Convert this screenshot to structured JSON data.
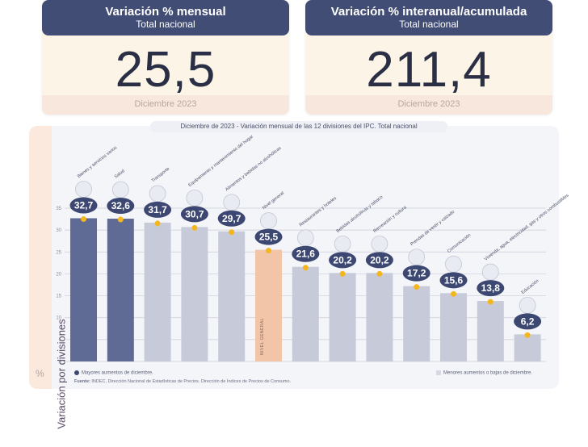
{
  "cards": [
    {
      "title": "Variación % mensual",
      "subtitle": "Total nacional",
      "value": "25,5",
      "date": "Diciembre 2023"
    },
    {
      "title": "Variación % interanual/acumulada",
      "subtitle": "Total nacional",
      "value": "211,4",
      "date": "Diciembre 2023"
    }
  ],
  "chart_data": {
    "type": "bar",
    "title": "Diciembre de 2023 - Variación mensual de las 12 divisiones del IPC. Total nacional",
    "ylabel": "Variación por divisiones",
    "yunit": "%",
    "ylim": [
      0,
      35
    ],
    "yticks": [
      0,
      5,
      10,
      15,
      20,
      25,
      30,
      35
    ],
    "categories": [
      "Bienes y servicios varios",
      "Salud",
      "Transporte",
      "Equipamiento y mantenimiento del hogar",
      "Alimentos y bebidas no alcohólicas",
      "Nivel general",
      "Restaurantes y hoteles",
      "Bebidas alcohólicas y tabaco",
      "Recreación y cultura",
      "Prendas de vestir y calzado",
      "Comunicación",
      "Vivienda, agua, electricidad, gas y otros combustibles",
      "Educación"
    ],
    "values": [
      32.7,
      32.6,
      31.7,
      30.7,
      29.7,
      25.5,
      21.6,
      20.2,
      20.2,
      17.2,
      15.6,
      13.8,
      6.2
    ],
    "value_labels": [
      "32,7",
      "32,6",
      "31,7",
      "30,7",
      "29,7",
      "25,5",
      "21,6",
      "20,2",
      "20,2",
      "17,2",
      "15,6",
      "13,8",
      "6,2"
    ],
    "groups": [
      "mayor",
      "mayor",
      "menor",
      "menor",
      "menor",
      "general",
      "menor",
      "menor",
      "menor",
      "menor",
      "menor",
      "menor",
      "menor"
    ],
    "general_bar_label": "NIVEL GENERAL",
    "colors": {
      "mayor": "#5f6b95",
      "menor": "#c7cbd9",
      "general": "#f2c4a8",
      "badge": "#3d4872",
      "dot": "#f3b61f"
    }
  },
  "legend": {
    "left": "Mayores aumentos de diciembre.",
    "right": "Menores aumentos o bajas de diciembre."
  },
  "source": {
    "label": "Fuente:",
    "text": "INDEC, Dirección Nacional de Estadísticas de Precios. Dirección de Índices de Precios de Consumo."
  }
}
